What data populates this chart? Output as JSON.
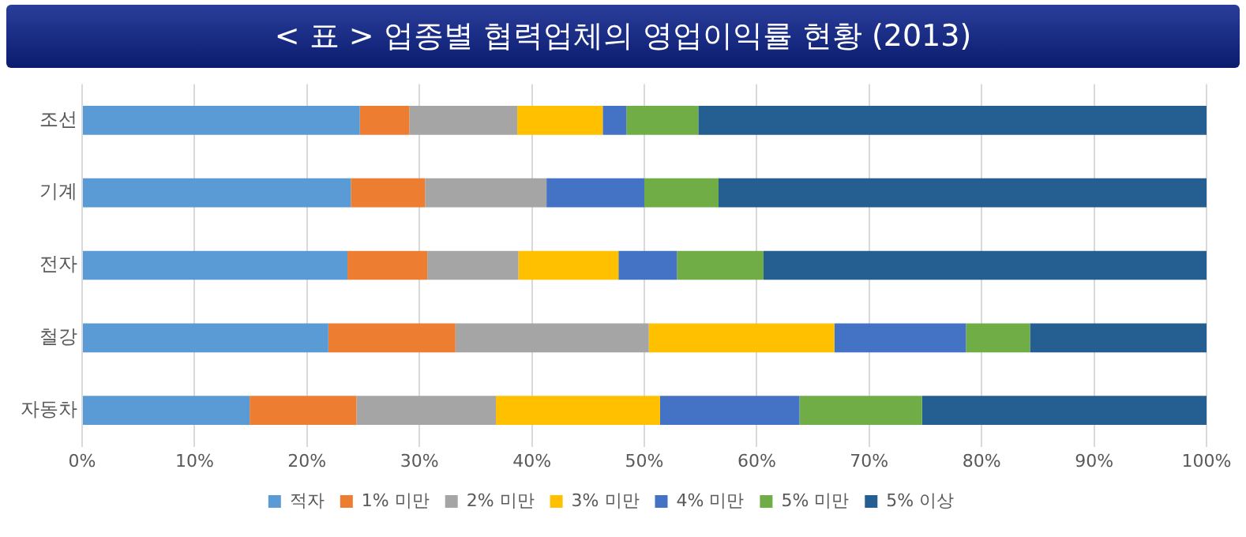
{
  "chart_data": {
    "type": "bar",
    "orientation": "horizontal",
    "stacked": true,
    "title": "< 표 > 업종별 협력업체의 영업이익률 현황 (2013)",
    "categories": [
      "조선",
      "기계",
      "전자",
      "철강",
      "자동차"
    ],
    "series": [
      {
        "name": "적자",
        "color": "#5b9bd5",
        "values": [
          24.7,
          23.9,
          23.6,
          21.9,
          14.9
        ]
      },
      {
        "name": "1% 미만",
        "color": "#ed7d31",
        "values": [
          4.4,
          6.6,
          7.1,
          11.3,
          9.5
        ]
      },
      {
        "name": "2% 미만",
        "color": "#a5a5a5",
        "values": [
          9.6,
          10.8,
          8.1,
          17.2,
          12.4
        ]
      },
      {
        "name": "3% 미만",
        "color": "#ffc000",
        "values": [
          7.6,
          0,
          8.9,
          16.5,
          14.6
        ]
      },
      {
        "name": "4% 미만",
        "color": "#4472c4",
        "values": [
          2.1,
          8.7,
          5.2,
          11.7,
          12.4
        ]
      },
      {
        "name": "5% 미만",
        "color": "#70ad47",
        "values": [
          6.4,
          6.6,
          7.7,
          5.7,
          10.9
        ]
      },
      {
        "name": "5% 이상",
        "color": "#255e91",
        "values": [
          45.2,
          43.4,
          39.4,
          15.7,
          25.3
        ]
      }
    ],
    "xlim": [
      0,
      100
    ],
    "xticks": [
      {
        "value": 0,
        "label": "0%"
      },
      {
        "value": 10,
        "label": "10%"
      },
      {
        "value": 20,
        "label": "20%"
      },
      {
        "value": 30,
        "label": "30%"
      },
      {
        "value": 40,
        "label": "40%"
      },
      {
        "value": 50,
        "label": "50%"
      },
      {
        "value": 60,
        "label": "60%"
      },
      {
        "value": 70,
        "label": "70%"
      },
      {
        "value": 80,
        "label": "80%"
      },
      {
        "value": 90,
        "label": "90%"
      },
      {
        "value": 100,
        "label": "100%"
      }
    ],
    "grid": "x",
    "legend": "bottom"
  }
}
